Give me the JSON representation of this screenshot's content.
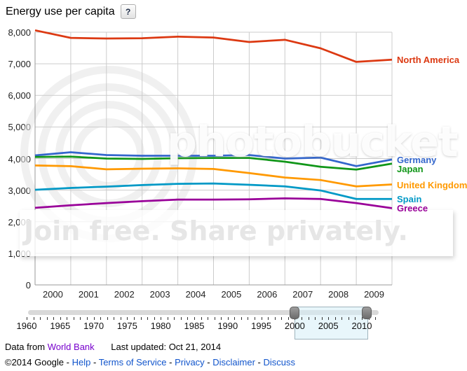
{
  "header": {
    "title": "Energy use per capita",
    "help_label": "?"
  },
  "chart_data": {
    "type": "line",
    "x": [
      2000,
      2001,
      2002,
      2003,
      2004,
      2005,
      2006,
      2007,
      2008,
      2009,
      2010
    ],
    "x_tick_labels": [
      "2000",
      "2001",
      "2002",
      "2003",
      "2004",
      "2005",
      "2006",
      "2007",
      "2008",
      "2009"
    ],
    "ytick_labels": [
      "0",
      "1,000",
      "2,000",
      "3,000",
      "4,000",
      "5,000",
      "6,000",
      "7,000",
      "8,000"
    ],
    "ylim": [
      0,
      8000
    ],
    "ytick_step": 1000,
    "grid": true,
    "legend_position": "right",
    "series": [
      {
        "name": "North America",
        "color": "#dc3912",
        "values": [
          8060,
          7820,
          7800,
          7810,
          7860,
          7830,
          7690,
          7760,
          7490,
          7060,
          7130
        ]
      },
      {
        "name": "Germany",
        "color": "#3366cc",
        "values": [
          4100,
          4200,
          4110,
          4090,
          4090,
          4090,
          4110,
          4000,
          4030,
          3760,
          3970
        ]
      },
      {
        "name": "Japan",
        "color": "#109618",
        "values": [
          4050,
          4060,
          4000,
          3990,
          4010,
          4020,
          4020,
          3900,
          3740,
          3650,
          3840
        ]
      },
      {
        "name": "United Kingdom",
        "color": "#ff9900",
        "values": [
          3780,
          3760,
          3660,
          3680,
          3690,
          3670,
          3540,
          3400,
          3320,
          3120,
          3180
        ]
      },
      {
        "name": "Spain",
        "color": "#0099c6",
        "values": [
          3010,
          3070,
          3110,
          3160,
          3200,
          3210,
          3170,
          3120,
          2990,
          2720,
          2720
        ]
      },
      {
        "name": "Greece",
        "color": "#990099",
        "values": [
          2440,
          2520,
          2590,
          2650,
          2700,
          2700,
          2710,
          2740,
          2720,
          2590,
          2430
        ]
      }
    ]
  },
  "watermark": {
    "logo_text": "photobucket",
    "tagline": "Join free. Share privately."
  },
  "timeline": {
    "labels": [
      "1960",
      "1965",
      "1970",
      "1975",
      "1980",
      "1985",
      "1990",
      "1995",
      "2000",
      "2005",
      "2010"
    ],
    "start_year": 1960,
    "tick_end_year": 2012,
    "label_every": 5,
    "selected_start": 2000,
    "selected_end": 2010
  },
  "footer": {
    "data_source_prefix": "Data from",
    "data_source_link": "World Bank",
    "last_updated": "Last updated: Oct 21, 2014",
    "copyright": "©2014 Google",
    "separator": " - ",
    "links": [
      "Help",
      "Terms of Service",
      "Privacy",
      "Disclaimer",
      "Discuss"
    ]
  }
}
